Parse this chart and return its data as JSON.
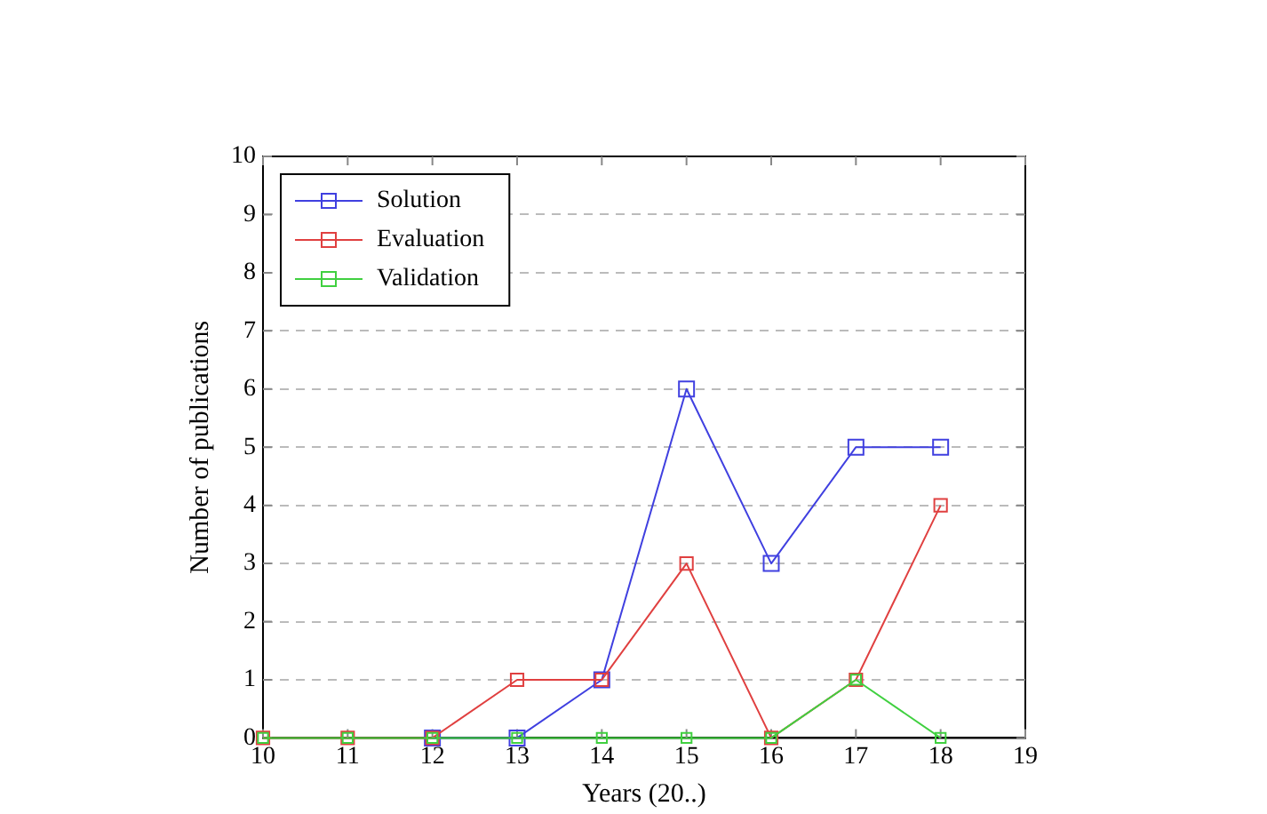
{
  "chart_data": {
    "type": "line",
    "xlabel": "Years (20..)",
    "ylabel": "Number of publications",
    "x": [
      10,
      11,
      12,
      13,
      14,
      15,
      16,
      17,
      18
    ],
    "series": [
      {
        "name": "Solution",
        "color": "#4040e0",
        "values": [
          null,
          null,
          0,
          0,
          1,
          6,
          3,
          5,
          5
        ]
      },
      {
        "name": "Evaluation",
        "color": "#e04040",
        "values": [
          0,
          0,
          0,
          1,
          1,
          3,
          0,
          1,
          4
        ]
      },
      {
        "name": "Validation",
        "color": "#40d040",
        "values": [
          0,
          0,
          0,
          0,
          0,
          0,
          0,
          1,
          0
        ]
      }
    ],
    "xlim": [
      10,
      19
    ],
    "xticks": [
      10,
      11,
      12,
      13,
      14,
      15,
      16,
      17,
      18,
      19
    ],
    "ylim": [
      0,
      10
    ],
    "yticks": [
      0,
      1,
      2,
      3,
      4,
      5,
      6,
      7,
      8,
      9,
      10
    ],
    "grid": "y",
    "legend": "top left",
    "marker": "square",
    "line_style": "solid"
  }
}
